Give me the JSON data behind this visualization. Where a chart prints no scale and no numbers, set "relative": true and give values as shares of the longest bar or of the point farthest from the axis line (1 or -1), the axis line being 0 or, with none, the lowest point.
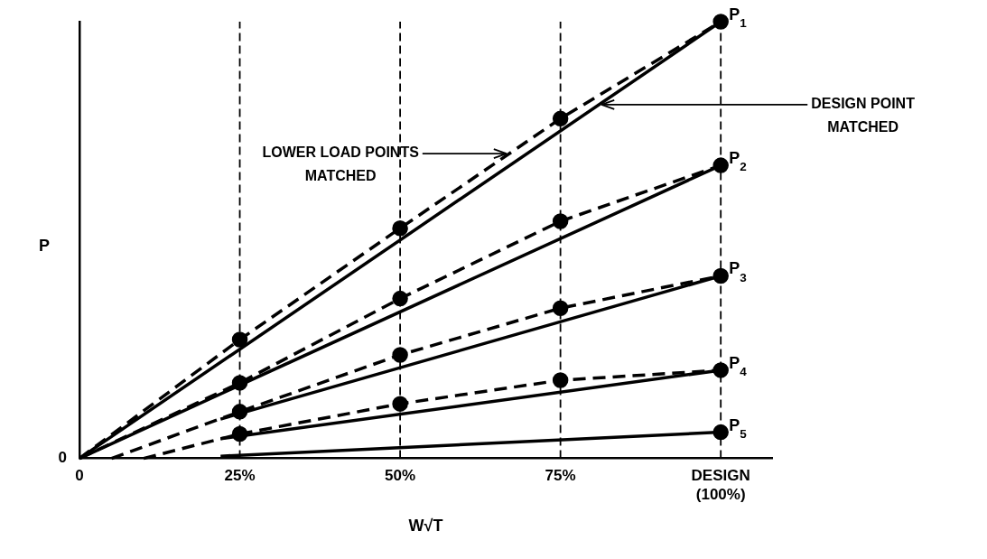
{
  "chart_data": {
    "type": "line",
    "relative": true,
    "xlabel": "W√T",
    "ylabel": "P",
    "xlim": [
      0,
      108
    ],
    "xticks": [
      0,
      {
        "value": 25,
        "label": "25%"
      },
      {
        "value": 50,
        "label": "50%"
      },
      {
        "value": 75,
        "label": "75%"
      },
      {
        "value": 100,
        "label": "DESIGN (100%)"
      }
    ],
    "grid": false,
    "legend": false,
    "series": [
      {
        "type": "line",
        "color": "#000000",
        "line_style": "dashed",
        "marker": "circle",
        "x": [
          0,
          25,
          50,
          75,
          100
        ],
        "values": [
          0,
          0.272,
          0.527,
          0.778,
          1
        ]
      },
      {
        "type": "line",
        "color": "#000000",
        "line_style": "dashed",
        "marker": "circle",
        "x": [
          0,
          25,
          50,
          75,
          100
        ],
        "values": [
          0,
          0.173,
          0.366,
          0.543,
          0.671
        ]
      },
      {
        "type": "line",
        "color": "#000000",
        "line_style": "dashed",
        "marker": "circle",
        "x": [
          5,
          25,
          50,
          75,
          100
        ],
        "values": [
          0,
          0.107,
          0.237,
          0.344,
          0.418
        ]
      },
      {
        "type": "line",
        "color": "#000000",
        "line_style": "dashed",
        "marker": "circle",
        "x": [
          10,
          25,
          50,
          75,
          100
        ],
        "values": [
          0,
          0.056,
          0.125,
          0.179,
          0.202
        ]
      },
      {
        "type": "line",
        "name": "P$_{1}$",
        "color": "#000000",
        "line_style": "solid",
        "x": [
          0,
          100
        ],
        "values": [
          0,
          1
        ]
      },
      {
        "type": "line",
        "name": "P$_{2}$",
        "color": "#000000",
        "line_style": "solid",
        "x": [
          0,
          100
        ],
        "values": [
          0,
          0.671
        ]
      },
      {
        "type": "line",
        "name": "P$_{3}$",
        "color": "#000000",
        "line_style": "solid",
        "x": [
          22,
          100
        ],
        "values": [
          0.09,
          0.418
        ]
      },
      {
        "type": "line",
        "name": "P$_{4}$",
        "color": "#000000",
        "line_style": "solid",
        "x": [
          22,
          100
        ],
        "values": [
          0.045,
          0.202
        ]
      },
      {
        "type": "line",
        "name": "P$_{5}$",
        "color": "#000000",
        "line_style": "solid",
        "x": [
          22,
          100
        ],
        "values": [
          0.005,
          0.06
        ]
      },
      {
        "type": "scatter",
        "color": "#000000",
        "marker": "circle",
        "x": [
          100
        ],
        "values": [
          0.06
        ]
      }
    ],
    "ref_lines": [
      {
        "axis": "x",
        "value": 25,
        "line_style": "dashed",
        "color": "#000000"
      },
      {
        "axis": "x",
        "value": 50,
        "line_style": "dashed",
        "color": "#000000"
      },
      {
        "axis": "x",
        "value": 75,
        "line_style": "dashed",
        "color": "#000000"
      },
      {
        "axis": "x",
        "value": 100,
        "line_style": "dashed",
        "color": "#000000"
      }
    ],
    "annotations": [
      {
        "text": "LOWER LOAD POINTS MATCHED",
        "x": 67,
        "y": 0.698
      },
      {
        "text": "DESIGN POINT MATCHED",
        "x": 81,
        "y": 0.81
      },
      "0"
    ]
  }
}
